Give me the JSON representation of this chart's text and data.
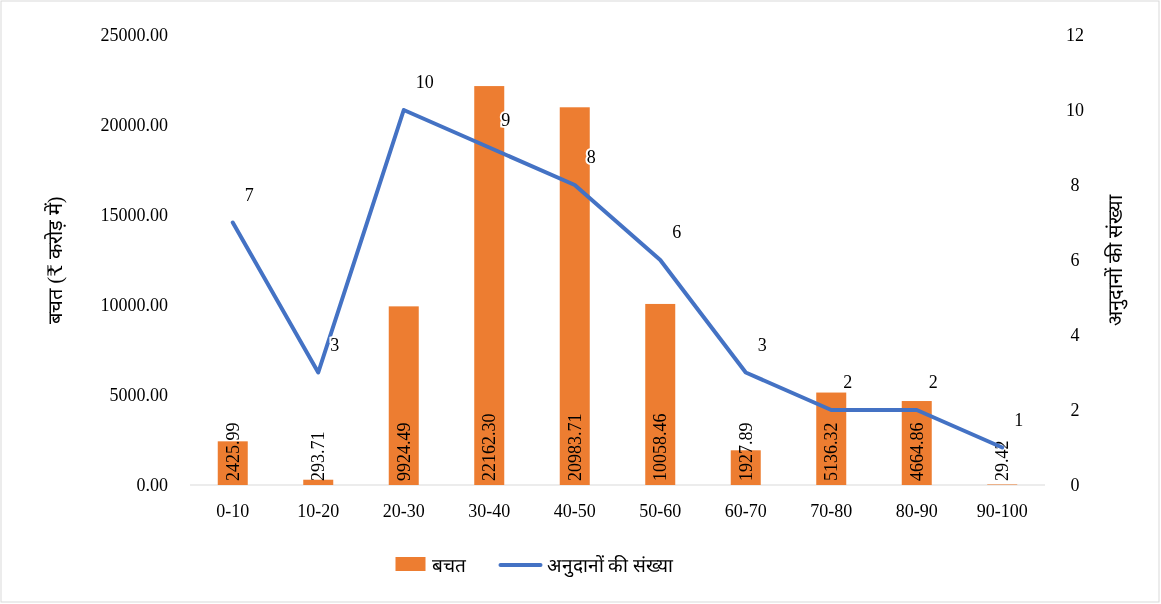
{
  "chart_data": {
    "type": "bar",
    "ylabel": "बचत (₹ करोड़ में)",
    "y2label": "अनुदानों की संख्या",
    "legend": "bottom",
    "categories": [
      "0-10",
      "10-20",
      "20-30",
      "30-40",
      "40-50",
      "50-60",
      "60-70",
      "70-80",
      "80-90",
      "90-100"
    ],
    "series": [
      {
        "name": "बचत",
        "color": "#ed7d31",
        "values": [
          2425.99,
          293.71,
          9924.49,
          22162.3,
          20983.71,
          10058.46,
          1927.89,
          5136.32,
          4664.86,
          29.42
        ],
        "value_labels": [
          "2425.99",
          "293.71",
          "9924.49",
          "22162.30",
          "20983.71",
          "10058.46",
          "1927.89",
          "5136.32",
          "4664.86",
          "29.42"
        ]
      },
      {
        "type": "line",
        "name": "अनुदानों की संख्या",
        "color": "#4472c4",
        "axis": "y2",
        "values": [
          7,
          3,
          10,
          9,
          8,
          6,
          3,
          2,
          2,
          1
        ],
        "value_labels": [
          "7",
          "3",
          "10",
          "9",
          "8",
          "6",
          "3",
          "2",
          "2",
          "1"
        ]
      }
    ],
    "ylim": [
      0,
      25000
    ],
    "yticks": [
      {
        "value": 0,
        "label": "0.00"
      },
      {
        "value": 5000,
        "label": "5000.00"
      },
      {
        "value": 10000,
        "label": "10000.00"
      },
      {
        "value": 15000,
        "label": "15000.00"
      },
      {
        "value": 20000,
        "label": "20000.00"
      },
      {
        "value": 25000,
        "label": "25000.00"
      }
    ],
    "y2lim": [
      0,
      12
    ],
    "y2ticks": [
      0,
      2,
      4,
      6,
      8,
      10,
      12
    ]
  }
}
